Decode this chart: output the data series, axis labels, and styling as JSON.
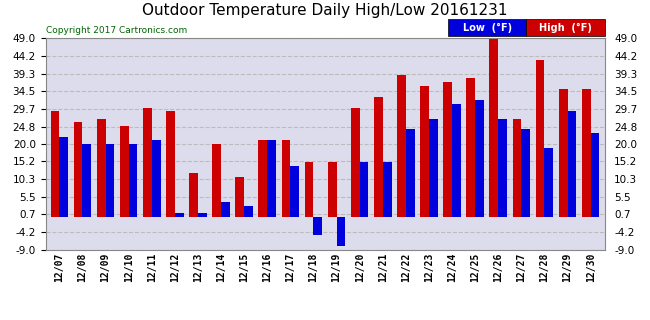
{
  "title": "Outdoor Temperature Daily High/Low 20161231",
  "copyright": "Copyright 2017 Cartronics.com",
  "legend_low": "Low  (°F)",
  "legend_high": "High  (°F)",
  "dates": [
    "12/07",
    "12/08",
    "12/09",
    "12/10",
    "12/11",
    "12/12",
    "12/13",
    "12/14",
    "12/15",
    "12/16",
    "12/17",
    "12/18",
    "12/19",
    "12/20",
    "12/21",
    "12/22",
    "12/23",
    "12/24",
    "12/25",
    "12/26",
    "12/27",
    "12/28",
    "12/29",
    "12/30"
  ],
  "low_temps": [
    22,
    20,
    20,
    20,
    21,
    1,
    1,
    4,
    3,
    21,
    14,
    -5,
    -8,
    15,
    15,
    24,
    27,
    31,
    32,
    27,
    24,
    19,
    29,
    23
  ],
  "high_temps": [
    29,
    26,
    27,
    25,
    30,
    29,
    12,
    20,
    11,
    21,
    21,
    15,
    15,
    30,
    33,
    39,
    36,
    37,
    38,
    49,
    27,
    43,
    35,
    35
  ],
  "low_color": "#0000dd",
  "high_color": "#cc0000",
  "bg_color": "#ffffff",
  "plot_bg_color": "#dcdcec",
  "grid_color": "#bbbbbb",
  "ylim": [
    -9.0,
    49.0
  ],
  "yticks": [
    -9.0,
    -4.2,
    0.7,
    5.5,
    10.3,
    15.2,
    20.0,
    24.8,
    29.7,
    34.5,
    39.3,
    44.2,
    49.0
  ],
  "title_fontsize": 11,
  "bar_width": 0.38
}
